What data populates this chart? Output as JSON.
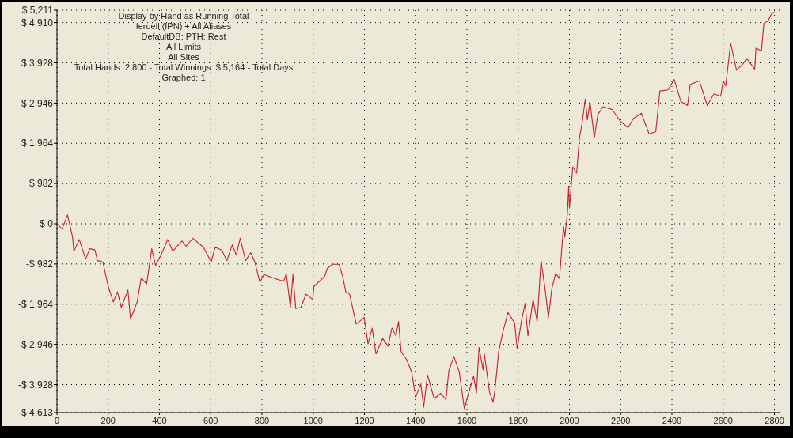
{
  "chart_data": {
    "type": "line",
    "title": "Display by Hand as Running Total",
    "annotations": [
      "feruell (IPN) + All Aliases",
      "DefaultDB: PTH: Rest",
      "All Limits",
      "All Sites",
      "Total Hands: 2,800 - Total Winnings: $ 5,164 - Total Days",
      "Graphed: 1"
    ],
    "series": [
      {
        "color": "#c8202a",
        "x": [
          0,
          20,
          41,
          61,
          66,
          87,
          112,
          128,
          148,
          158,
          179,
          200,
          220,
          236,
          251,
          277,
          287,
          313,
          329,
          350,
          370,
          385,
          406,
          432,
          452,
          488,
          504,
          530,
          571,
          602,
          617,
          643,
          663,
          684,
          700,
          715,
          736,
          756,
          772,
          792,
          808,
          849,
          885,
          895,
          911,
          921,
          932,
          952,
          972,
          998,
          1003,
          1045,
          1055,
          1075,
          1101,
          1116,
          1127,
          1142,
          1168,
          1199,
          1214,
          1230,
          1245,
          1271,
          1292,
          1307,
          1323,
          1333,
          1343,
          1364,
          1384,
          1400,
          1420,
          1431,
          1446,
          1472,
          1498,
          1518,
          1529,
          1549,
          1570,
          1590,
          1606,
          1626,
          1637,
          1647,
          1663,
          1668,
          1688,
          1702,
          1709,
          1724,
          1740,
          1760,
          1786,
          1796,
          1812,
          1827,
          1838,
          1858,
          1874,
          1889,
          1905,
          1918,
          1931,
          1946,
          1961,
          1977,
          1982,
          1992,
          1997,
          2000,
          2013,
          2028,
          2039,
          2049,
          2062,
          2070,
          2080,
          2097,
          2111,
          2131,
          2167,
          2198,
          2229,
          2250,
          2281,
          2311,
          2337,
          2353,
          2384,
          2409,
          2435,
          2461,
          2471,
          2507,
          2538,
          2564,
          2590,
          2600,
          2610,
          2629,
          2652,
          2677,
          2692,
          2723,
          2728,
          2749,
          2759,
          2775,
          2790,
          2800
        ],
        "values": [
          0,
          -130,
          215,
          -325,
          -670,
          -385,
          -860,
          -610,
          -640,
          -900,
          -930,
          -1530,
          -1910,
          -1660,
          -2040,
          -1620,
          -2330,
          -1910,
          -1320,
          -1470,
          -610,
          -1020,
          -765,
          -385,
          -670,
          -420,
          -550,
          -355,
          -570,
          -930,
          -575,
          -640,
          -900,
          -515,
          -765,
          -355,
          -900,
          -705,
          -930,
          -1430,
          -1240,
          -1335,
          -1405,
          -1215,
          -2040,
          -1240,
          -2070,
          -2040,
          -1720,
          -1850,
          -1530,
          -1280,
          -1090,
          -990,
          -990,
          -1310,
          -1660,
          -1720,
          -2450,
          -2290,
          -2930,
          -2550,
          -3180,
          -2800,
          -2990,
          -2550,
          -2740,
          -2385,
          -3120,
          -3310,
          -3620,
          -4230,
          -3910,
          -4480,
          -3690,
          -4270,
          -4140,
          -4300,
          -3600,
          -3240,
          -3620,
          -4520,
          -4140,
          -3720,
          -4140,
          -3020,
          -3570,
          -3180,
          -4110,
          -4360,
          -4075,
          -3120,
          -2645,
          -2170,
          -2420,
          -3060,
          -2390,
          -1945,
          -2740,
          -1850,
          -2390,
          -900,
          -1595,
          -2295,
          -1595,
          -1215,
          -1335,
          -70,
          -325,
          250,
          915,
          380,
          1390,
          1235,
          2095,
          2440,
          3045,
          2535,
          2980,
          2095,
          2665,
          2855,
          2790,
          2505,
          2345,
          2570,
          2695,
          2190,
          2250,
          3240,
          3265,
          3520,
          2980,
          2885,
          3395,
          3490,
          2885,
          3170,
          3110,
          3490,
          3365,
          4410,
          3745,
          3900,
          4030,
          3775,
          4285,
          4220,
          4890,
          4950,
          5140,
          5164
        ]
      }
    ],
    "xlim": [
      0,
      2820
    ],
    "xticks": [
      0,
      200,
      400,
      600,
      800,
      1000,
      1200,
      1400,
      1600,
      1800,
      2000,
      2200,
      2400,
      2600,
      2800
    ],
    "ylim": [
      -4613,
      5211
    ],
    "yticks": [
      {
        "value": 5211,
        "label": "$ 5,211"
      },
      {
        "value": 4910,
        "label": "$ 4,910"
      },
      {
        "value": 3928,
        "label": "$ 3,928"
      },
      {
        "value": 2946,
        "label": "$ 2,946"
      },
      {
        "value": 1964,
        "label": "$ 1,964"
      },
      {
        "value": 982,
        "label": "$ 982"
      },
      {
        "value": 0,
        "label": "$ 0"
      },
      {
        "value": -982,
        "label": "-$ 982"
      },
      {
        "value": -1964,
        "label": "-$ 1,964"
      },
      {
        "value": -2946,
        "label": "-$ 2,946"
      },
      {
        "value": -3928,
        "label": "-$ 3,928"
      },
      {
        "value": -4613,
        "label": "-$ 4,613"
      }
    ],
    "grid": true
  }
}
